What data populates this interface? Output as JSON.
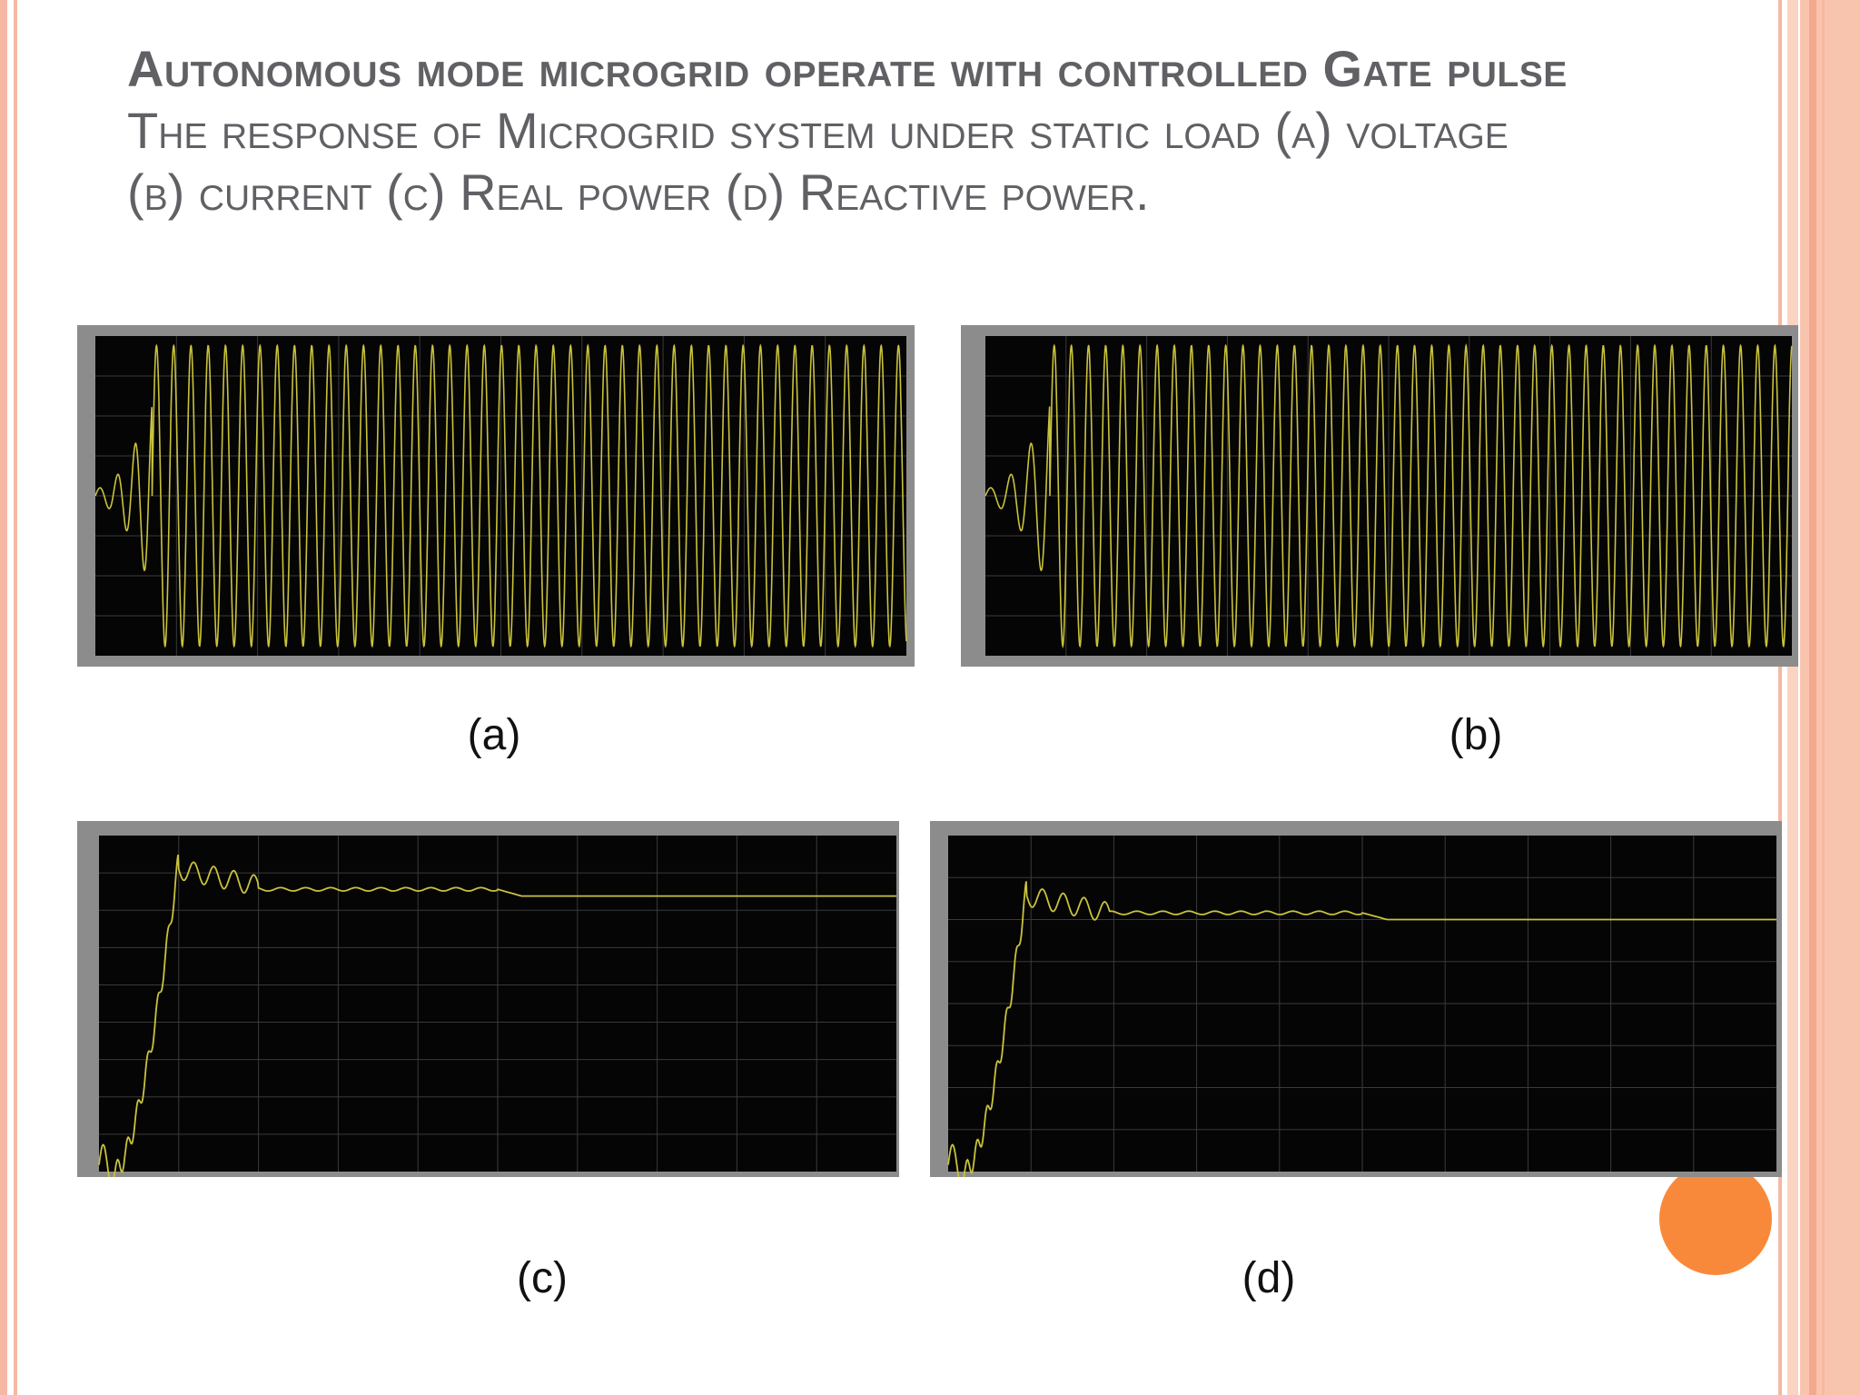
{
  "slide": {
    "title_bold": "Autonomous mode microgrid operate with controlled Gate pulse",
    "title_line2": "The response of Microgrid system under static load (a)  voltage",
    "title_line3": "(b)  current (c) Real power (d) Reactive power."
  },
  "captions": {
    "a": "(a)",
    "b": "(b)",
    "c": "(c)",
    "d": "(d)"
  },
  "colors": {
    "trace": "#c9c23c",
    "plot_bg": "#050505",
    "frame": "#8c8c8c",
    "accent_circle": "#f9893a",
    "border_decor": "#f6b8a3"
  }
}
